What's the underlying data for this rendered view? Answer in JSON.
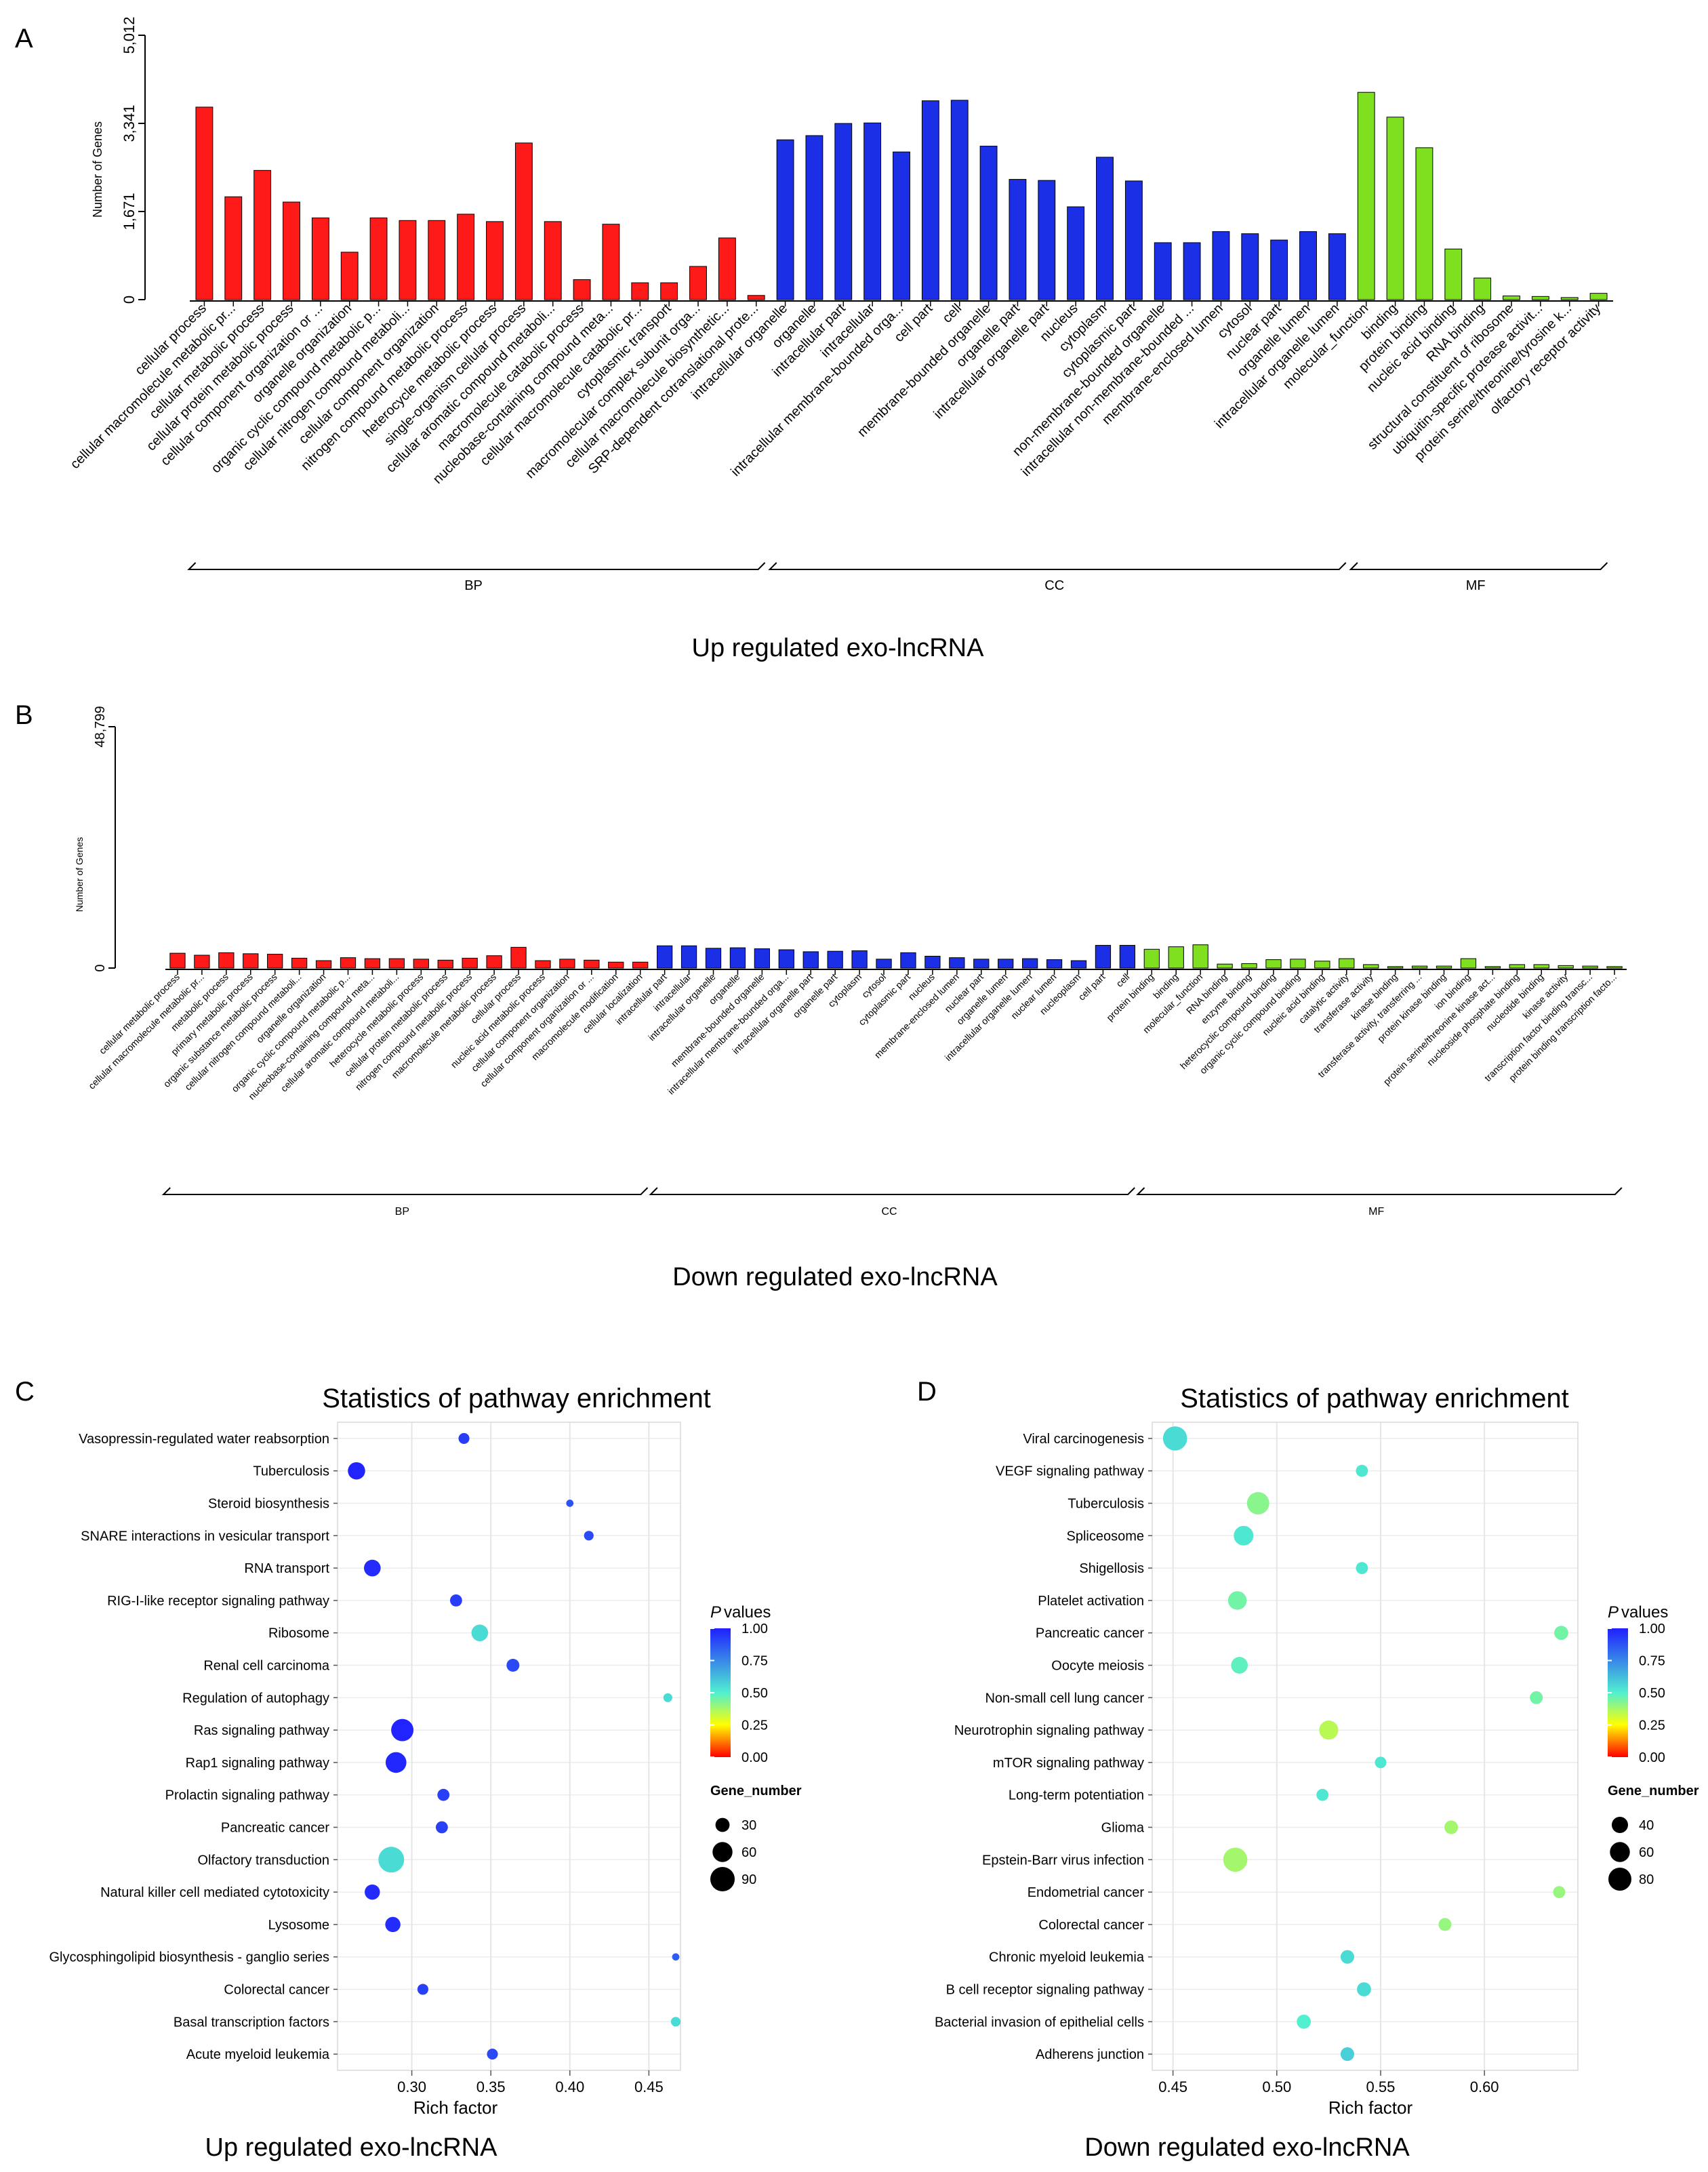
{
  "panel_labels": {
    "A": "A",
    "B": "B",
    "C": "C",
    "D": "D"
  },
  "colors": {
    "bp": "#ff1a1a",
    "cc": "#1a2fe6",
    "mf": "#7ee01f",
    "gradient": [
      "#ff0000",
      "#ffff00",
      "#50f0d0",
      "#2020ff"
    ]
  },
  "chart_data": [
    {
      "id": "A",
      "type": "bar",
      "ylabel": "Number of Genes",
      "ytick_labels": [
        "0",
        "1,671",
        "3,341",
        "5,012"
      ],
      "ytick_values": [
        0,
        1671,
        3341,
        5012
      ],
      "ylim": [
        0,
        5012
      ],
      "caption": "Up regulated exo-lncRNA",
      "groups": [
        {
          "name": "BP",
          "color": "#ff1a1a",
          "categories": [
            "cellular process",
            "cellular macromolecule metabolic pr...",
            "cellular metabolic process",
            "cellular protein metabolic process",
            "cellular component organization or ...",
            "organelle organization",
            "organic cyclic compound metabolic p...",
            "cellular nitrogen compound metaboli...",
            "cellular component organization",
            "nitrogen compound metabolic process",
            "heterocycle metabolic process",
            "single-organism cellular process",
            "cellular aromatic compound metaboli...",
            "macromolecule catabolic process",
            "nucleobase-containing compound meta...",
            "cellular macromolecule catabolic pr...",
            "cytoplasmic transport",
            "macromolecular complex subunit orga...",
            "cellular macromolecule biosynthetic...",
            "SRP-dependent cotranslational prote..."
          ],
          "values": [
            3650,
            1950,
            2450,
            1850,
            1550,
            900,
            1550,
            1500,
            1500,
            1620,
            1480,
            2970,
            1480,
            380,
            1430,
            320,
            320,
            630,
            1170,
            80
          ]
        },
        {
          "name": "CC",
          "color": "#1a2fe6",
          "categories": [
            "intracellular organelle",
            "organelle",
            "intracellular part",
            "intracellular",
            "intracellular membrane-bounded orga...",
            "cell part",
            "cell",
            "membrane-bounded organelle",
            "organelle part",
            "intracellular organelle part",
            "nucleus",
            "cytoplasm",
            "cytoplasmic part",
            "non-membrane-bounded organelle",
            "intracellular non-membrane-bounded ...",
            "membrane-enclosed lumen",
            "cytosol",
            "nuclear part",
            "organelle lumen",
            "intracellular organelle lumen"
          ],
          "values": [
            3030,
            3110,
            3340,
            3350,
            2800,
            3770,
            3780,
            2910,
            2280,
            2260,
            1760,
            2700,
            2250,
            1080,
            1080,
            1290,
            1250,
            1130,
            1290,
            1250
          ]
        },
        {
          "name": "MF",
          "color": "#7ee01f",
          "categories": [
            "molecular_function",
            "binding",
            "protein binding",
            "nucleic acid binding",
            "RNA binding",
            "structural constituent of ribosome",
            "ubiquitin-specific protease activit...",
            "protein serine/threonine/tyrosine k...",
            "olfactory receptor activity"
          ],
          "values": [
            3930,
            3460,
            2880,
            960,
            410,
            70,
            60,
            40,
            120
          ]
        }
      ]
    },
    {
      "id": "B",
      "type": "bar",
      "ylabel": "Number of Genes",
      "ytick_labels": [
        "0",
        "48,799"
      ],
      "ytick_values": [
        0,
        48799
      ],
      "ylim": [
        0,
        48799
      ],
      "caption": "Down regulated exo-lncRNA",
      "groups": [
        {
          "name": "BP",
          "color": "#ff1a1a",
          "categories": [
            "cellular metabolic process",
            "cellular macromolecule metabolic pr...",
            "metabolic process",
            "primary metabolic process",
            "organic substance metabolic process",
            "cellular nitrogen compound metaboli...",
            "organelle organization",
            "organic cyclic compound metabolic p...",
            "nucleobase-containing compound meta...",
            "cellular aromatic compound metaboli...",
            "heterocycle metabolic process",
            "cellular protein metabolic process",
            "nitrogen compound metabolic process",
            "macromolecule metabolic process",
            "cellular process",
            "nucleic acid metabolic process",
            "cellular component organization",
            "cellular component organization or ...",
            "macromolecule modification",
            "cellular localization"
          ],
          "values": [
            3000,
            2600,
            3100,
            2900,
            2800,
            2000,
            1500,
            2100,
            1900,
            1900,
            1800,
            1600,
            2000,
            2500,
            4200,
            1500,
            1800,
            1600,
            1200,
            1200
          ]
        },
        {
          "name": "CC",
          "color": "#1a2fe6",
          "categories": [
            "intracellular part",
            "intracellular",
            "intracellular organelle",
            "organelle",
            "membrane-bounded organelle",
            "intracellular membrane-bounded orga...",
            "intracellular organelle part",
            "organelle part",
            "cytoplasm",
            "cytosol",
            "cytoplasmic part",
            "nucleus",
            "membrane-enclosed lumen",
            "nuclear part",
            "organelle lumen",
            "intracellular organelle lumen",
            "nuclear lumen",
            "nucleoplasm",
            "cell part",
            "cell"
          ],
          "values": [
            4500,
            4500,
            4000,
            4100,
            3900,
            3700,
            3300,
            3400,
            3500,
            1800,
            3100,
            2400,
            2100,
            1800,
            1800,
            1900,
            1700,
            1500,
            4600,
            4600
          ]
        },
        {
          "name": "MF",
          "color": "#7ee01f",
          "categories": [
            "protein binding",
            "binding",
            "molecular_function",
            "RNA binding",
            "enzyme binding",
            "heterocyclic compound binding",
            "organic cyclic compound binding",
            "nucleic acid binding",
            "catalytic activity",
            "transferase activity",
            "kinase binding",
            "transferase activity, transferring ...",
            "protein kinase binding",
            "ion binding",
            "protein serine/threonine kinase act...",
            "nucleoside phosphate binding",
            "nucleotide binding",
            "kinase activity",
            "transcription factor binding transc...",
            "protein binding transcription facto..."
          ],
          "values": [
            3800,
            4300,
            4700,
            800,
            900,
            1700,
            1800,
            1400,
            1900,
            700,
            300,
            400,
            400,
            1900,
            300,
            700,
            700,
            500,
            400,
            300
          ]
        }
      ]
    },
    {
      "id": "C",
      "type": "scatter",
      "title": "Statistics of pathway enrichment",
      "xlabel": "Rich factor",
      "xlim": [
        0.253,
        0.47
      ],
      "xticks": [
        0.3,
        0.35,
        0.4,
        0.45
      ],
      "xtick_labels": [
        "0.30",
        "0.35",
        "0.40",
        "0.45"
      ],
      "legend_color_title": "P values",
      "legend_color_ticks": [
        "1.00",
        "0.75",
        "0.50",
        "0.25",
        "0.00"
      ],
      "legend_size_title": "Gene_number",
      "legend_size_labels": [
        "30",
        "60",
        "90"
      ],
      "legend_size_values": [
        30,
        60,
        90
      ],
      "caption": "Up regulated exo-lncRNA",
      "points": [
        {
          "pathway": "Vasopressin-regulated water reabsorption",
          "rich_factor": 0.333,
          "gene_number": 18,
          "p_value": 0.93
        },
        {
          "pathway": "Tuberculosis",
          "rich_factor": 0.265,
          "gene_number": 45,
          "p_value": 0.99
        },
        {
          "pathway": "Steroid biosynthesis",
          "rich_factor": 0.4,
          "gene_number": 8,
          "p_value": 0.88
        },
        {
          "pathway": "SNARE interactions in vesicular transport",
          "rich_factor": 0.412,
          "gene_number": 14,
          "p_value": 0.9
        },
        {
          "pathway": "RNA transport",
          "rich_factor": 0.275,
          "gene_number": 42,
          "p_value": 0.97
        },
        {
          "pathway": "RIG-I-like receptor signaling pathway",
          "rich_factor": 0.328,
          "gene_number": 22,
          "p_value": 0.93
        },
        {
          "pathway": "Ribosome",
          "rich_factor": 0.343,
          "gene_number": 42,
          "p_value": 0.55
        },
        {
          "pathway": "Renal cell carcinoma",
          "rich_factor": 0.364,
          "gene_number": 25,
          "p_value": 0.9
        },
        {
          "pathway": "Regulation of autophagy",
          "rich_factor": 0.462,
          "gene_number": 12,
          "p_value": 0.55
        },
        {
          "pathway": "Ras signaling pathway",
          "rich_factor": 0.294,
          "gene_number": 75,
          "p_value": 0.99
        },
        {
          "pathway": "Rap1 signaling pathway",
          "rich_factor": 0.29,
          "gene_number": 65,
          "p_value": 0.98
        },
        {
          "pathway": "Prolactin signaling pathway",
          "rich_factor": 0.32,
          "gene_number": 22,
          "p_value": 0.92
        },
        {
          "pathway": "Pancreatic cancer",
          "rich_factor": 0.319,
          "gene_number": 22,
          "p_value": 0.92
        },
        {
          "pathway": "Olfactory transduction",
          "rich_factor": 0.287,
          "gene_number": 100,
          "p_value": 0.55
        },
        {
          "pathway": "Natural killer cell mediated cytotoxicity",
          "rich_factor": 0.275,
          "gene_number": 35,
          "p_value": 0.97
        },
        {
          "pathway": "Lysosome",
          "rich_factor": 0.288,
          "gene_number": 35,
          "p_value": 0.97
        },
        {
          "pathway": "Glycosphingolipid biosynthesis - ganglio series",
          "rich_factor": 0.467,
          "gene_number": 8,
          "p_value": 0.85
        },
        {
          "pathway": "Colorectal cancer",
          "rich_factor": 0.307,
          "gene_number": 18,
          "p_value": 0.92
        },
        {
          "pathway": "Basal transcription factors",
          "rich_factor": 0.467,
          "gene_number": 14,
          "p_value": 0.55
        },
        {
          "pathway": "Acute myeloid leukemia",
          "rich_factor": 0.351,
          "gene_number": 18,
          "p_value": 0.9
        }
      ]
    },
    {
      "id": "D",
      "type": "scatter",
      "title": "Statistics of pathway enrichment",
      "xlabel": "Rich factor",
      "xlim": [
        0.44,
        0.645
      ],
      "xticks": [
        0.45,
        0.5,
        0.55,
        0.6
      ],
      "xtick_labels": [
        "0.45",
        "0.50",
        "0.55",
        "0.60"
      ],
      "legend_color_title": "P values",
      "legend_color_ticks": [
        "1.00",
        "0.75",
        "0.50",
        "0.25",
        "0.00"
      ],
      "legend_size_title": "Gene_number",
      "legend_size_labels": [
        "40",
        "60",
        "80"
      ],
      "legend_size_values": [
        40,
        60,
        80
      ],
      "caption": "Down regulated exo-lncRNA",
      "points": [
        {
          "pathway": "Viral carcinogenesis",
          "rich_factor": 0.451,
          "gene_number": 88,
          "p_value": 0.55
        },
        {
          "pathway": "VEGF signaling pathway",
          "rich_factor": 0.541,
          "gene_number": 22,
          "p_value": 0.52
        },
        {
          "pathway": "Tuberculosis",
          "rich_factor": 0.491,
          "gene_number": 75,
          "p_value": 0.42
        },
        {
          "pathway": "Spliceosome",
          "rich_factor": 0.484,
          "gene_number": 58,
          "p_value": 0.52
        },
        {
          "pathway": "Shigellosis",
          "rich_factor": 0.541,
          "gene_number": 22,
          "p_value": 0.52
        },
        {
          "pathway": "Platelet activation",
          "rich_factor": 0.481,
          "gene_number": 52,
          "p_value": 0.45
        },
        {
          "pathway": "Pancreatic cancer",
          "rich_factor": 0.637,
          "gene_number": 30,
          "p_value": 0.45
        },
        {
          "pathway": "Oocyte meiosis",
          "rich_factor": 0.482,
          "gene_number": 42,
          "p_value": 0.48
        },
        {
          "pathway": "Non-small cell lung cancer",
          "rich_factor": 0.625,
          "gene_number": 25,
          "p_value": 0.45
        },
        {
          "pathway": "Neurotrophin signaling pathway",
          "rich_factor": 0.525,
          "gene_number": 55,
          "p_value": 0.35
        },
        {
          "pathway": "mTOR signaling pathway",
          "rich_factor": 0.55,
          "gene_number": 20,
          "p_value": 0.52
        },
        {
          "pathway": "Long-term potentiation",
          "rich_factor": 0.522,
          "gene_number": 22,
          "p_value": 0.52
        },
        {
          "pathway": "Glioma",
          "rich_factor": 0.584,
          "gene_number": 28,
          "p_value": 0.38
        },
        {
          "pathway": "Epstein-Barr virus infection",
          "rich_factor": 0.48,
          "gene_number": 88,
          "p_value": 0.38
        },
        {
          "pathway": "Endometrial cancer",
          "rich_factor": 0.636,
          "gene_number": 22,
          "p_value": 0.4
        },
        {
          "pathway": "Colorectal cancer",
          "rich_factor": 0.581,
          "gene_number": 25,
          "p_value": 0.4
        },
        {
          "pathway": "Chronic myeloid leukemia",
          "rich_factor": 0.534,
          "gene_number": 28,
          "p_value": 0.55
        },
        {
          "pathway": "B cell receptor signaling pathway",
          "rich_factor": 0.542,
          "gene_number": 30,
          "p_value": 0.55
        },
        {
          "pathway": "Bacterial invasion of epithelial cells",
          "rich_factor": 0.513,
          "gene_number": 30,
          "p_value": 0.5
        },
        {
          "pathway": "Adherens junction",
          "rich_factor": 0.534,
          "gene_number": 28,
          "p_value": 0.58
        }
      ]
    }
  ]
}
